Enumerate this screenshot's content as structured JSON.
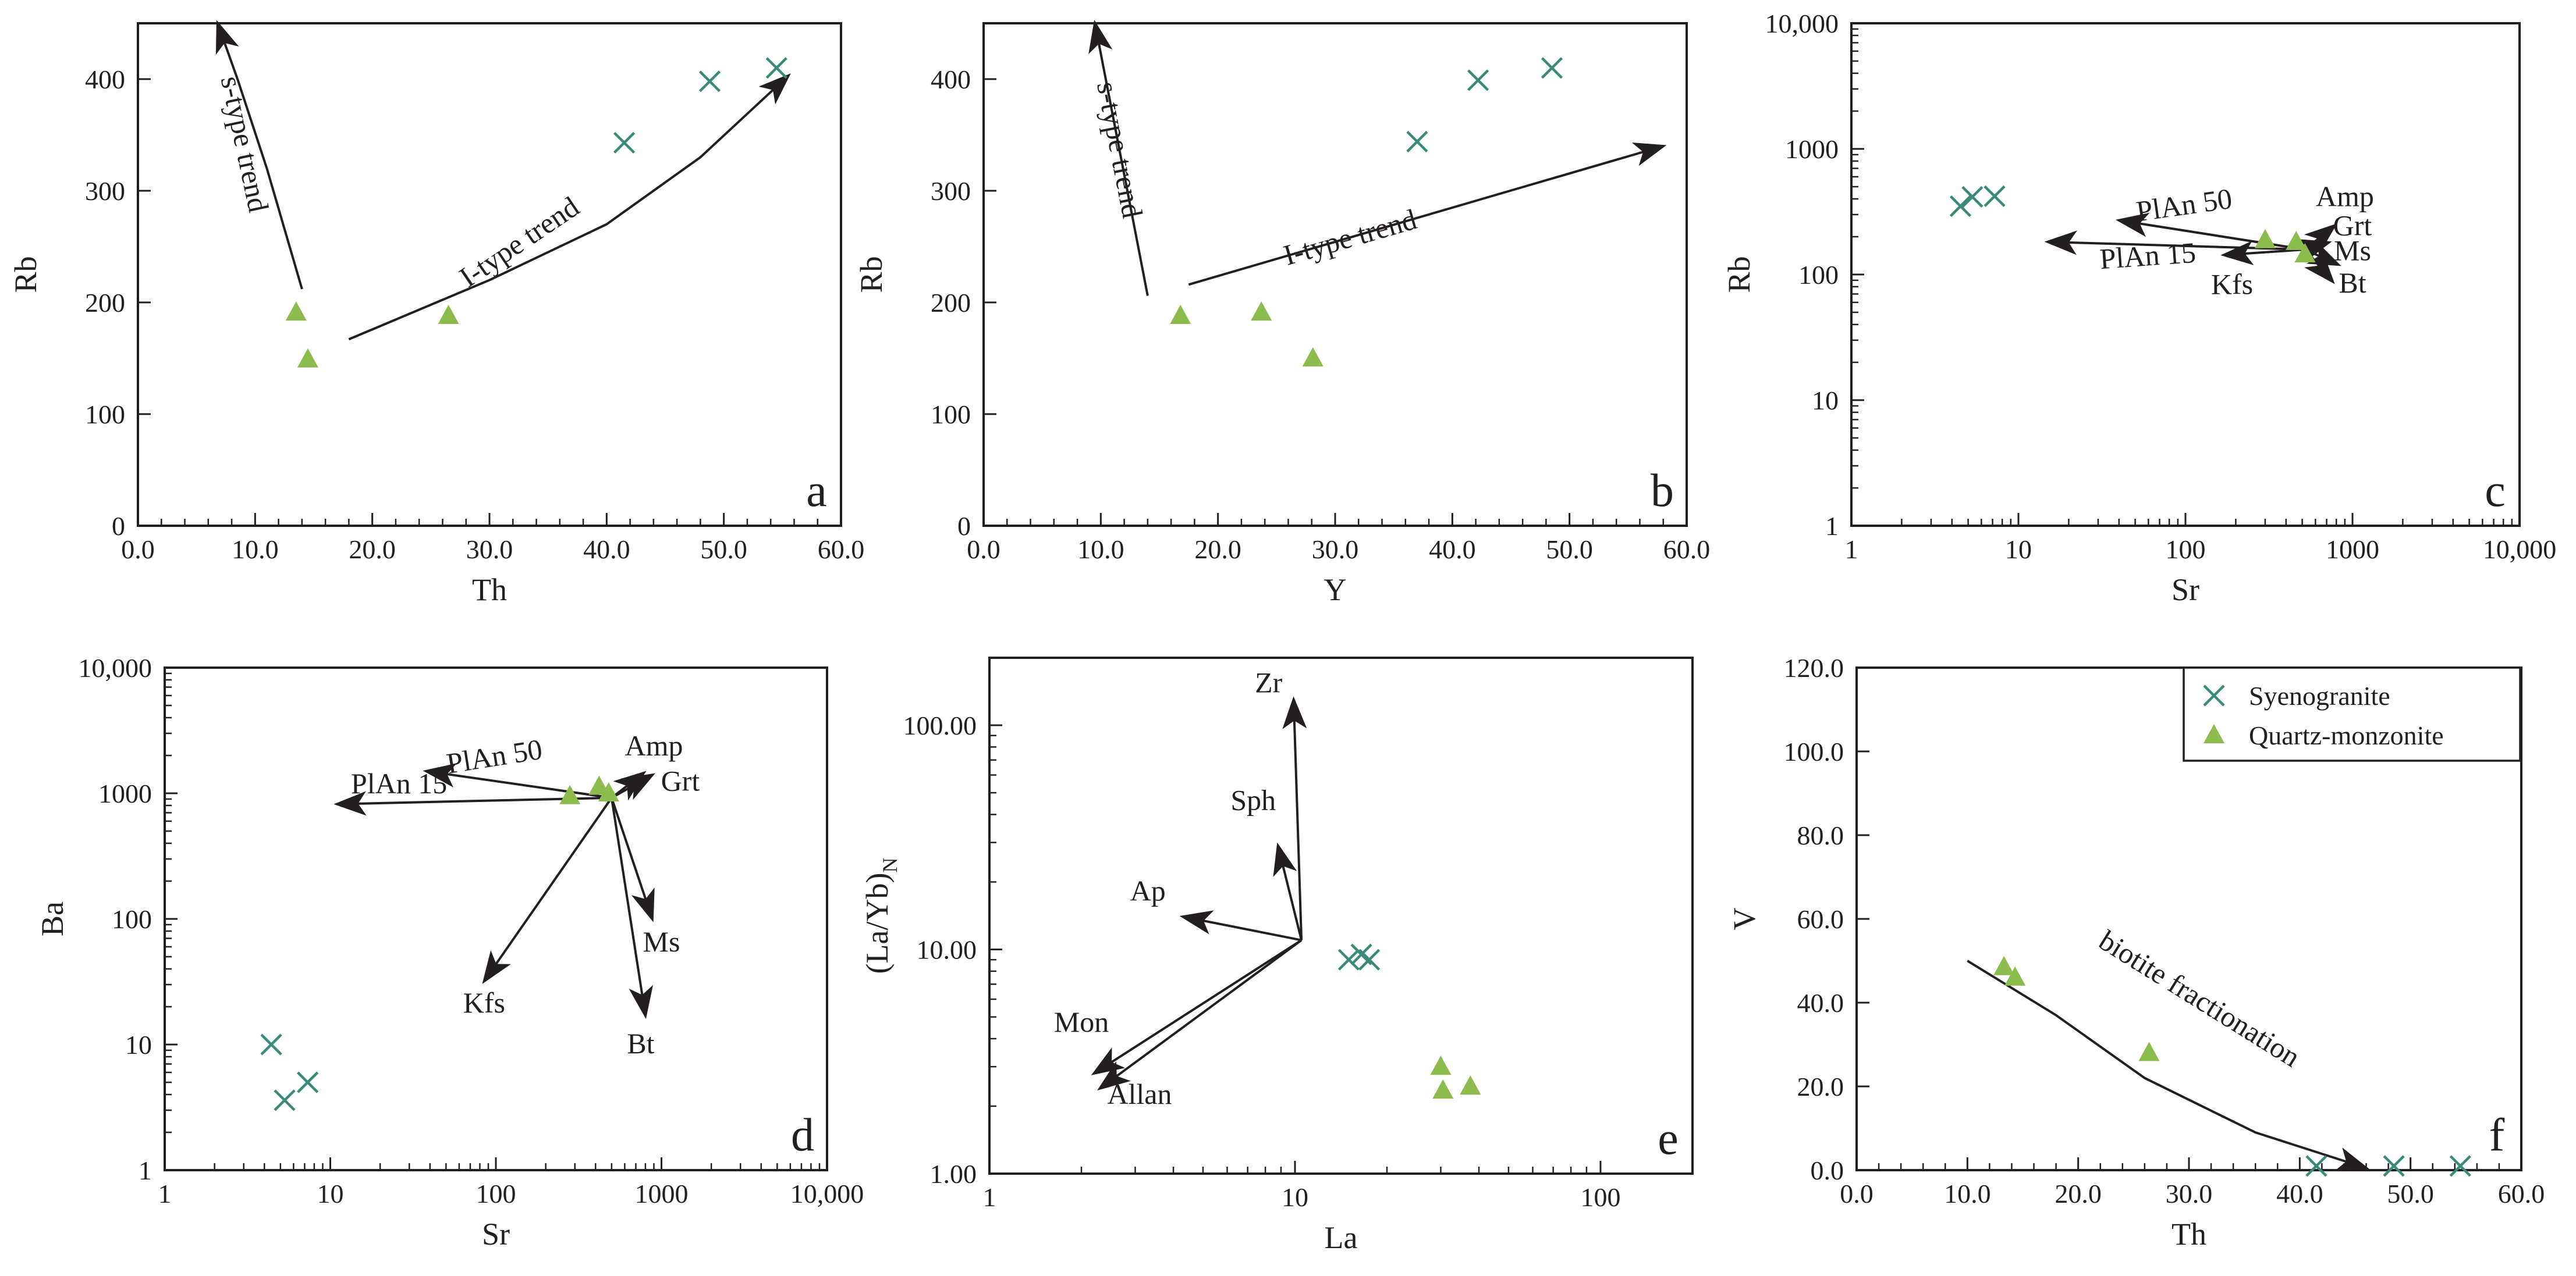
{
  "figure": {
    "marker_legend": [
      {
        "name": "Syenogranite",
        "symbol": "x",
        "color": "#3a8a7a"
      },
      {
        "name": "Quartz-monzonite",
        "symbol": "triangle",
        "color": "#8cbb4e"
      }
    ]
  },
  "chart_data": [
    {
      "type": "scatter",
      "panel_label": "a",
      "xlabel": "Th",
      "ylabel": "Rb",
      "xscale": "linear",
      "yscale": "linear",
      "xlim": [
        0,
        60
      ],
      "ylim": [
        0,
        450
      ],
      "xticks": [
        0,
        10,
        20,
        30,
        40,
        50,
        60
      ],
      "xtick_labels": [
        "0.0",
        "10.0",
        "20.0",
        "30.0",
        "40.0",
        "50.0",
        "60.0"
      ],
      "yticks": [
        0,
        100,
        200,
        300,
        400
      ],
      "ytick_labels": [
        "0",
        "100",
        "200",
        "300",
        "400"
      ],
      "series": [
        {
          "name": "Syenogranite",
          "x": [
            41.5,
            48.8,
            54.5
          ],
          "y": [
            343,
            398,
            410
          ]
        },
        {
          "name": "Quartz-monzonite",
          "x": [
            13.5,
            14.5,
            26.5
          ],
          "y": [
            191,
            149,
            188
          ]
        }
      ],
      "curves": [
        {
          "name": "s-type trend",
          "points": [
            [
              14,
              212
            ],
            [
              11,
              320
            ],
            [
              8.5,
              400
            ],
            [
              6.8,
              450
            ]
          ],
          "arrow": "end"
        },
        {
          "name": "I-type trend",
          "points": [
            [
              18,
              167
            ],
            [
              30,
              220
            ],
            [
              40,
              270
            ],
            [
              48,
              330
            ],
            [
              55.5,
              403
            ]
          ],
          "arrow": "end"
        }
      ],
      "annotations": [
        {
          "text": "s-type trend",
          "x": 8.3,
          "y": 340,
          "angle": 78
        },
        {
          "text": "I-type trend",
          "x": 33,
          "y": 247,
          "angle": -34
        }
      ]
    },
    {
      "type": "scatter",
      "panel_label": "b",
      "xlabel": "Y",
      "ylabel": "Rb",
      "xscale": "linear",
      "yscale": "linear",
      "xlim": [
        0,
        60
      ],
      "ylim": [
        0,
        450
      ],
      "xticks": [
        0,
        10,
        20,
        30,
        40,
        50,
        60
      ],
      "xtick_labels": [
        "0.0",
        "10.0",
        "20.0",
        "30.0",
        "40.0",
        "50.0",
        "60.0"
      ],
      "yticks": [
        0,
        100,
        200,
        300,
        400
      ],
      "ytick_labels": [
        "0",
        "100",
        "200",
        "300",
        "400"
      ],
      "series": [
        {
          "name": "Syenogranite",
          "x": [
            37,
            42.2,
            48.5
          ],
          "y": [
            344,
            399,
            410
          ]
        },
        {
          "name": "Quartz-monzonite",
          "x": [
            16.8,
            23.7,
            28.1
          ],
          "y": [
            188,
            191,
            150
          ]
        }
      ],
      "curves": [
        {
          "name": "s-type trend",
          "points": [
            [
              14,
              206
            ],
            [
              9.5,
              450
            ]
          ],
          "arrow": "end"
        },
        {
          "name": "I-type trend",
          "points": [
            [
              17.5,
              216
            ],
            [
              58,
              340
            ]
          ],
          "arrow": "end"
        }
      ],
      "annotations": [
        {
          "text": "s-type trend",
          "x": 10.8,
          "y": 335,
          "angle": 79
        },
        {
          "text": "I-type trend",
          "x": 31.5,
          "y": 250,
          "angle": -16
        }
      ]
    },
    {
      "type": "scatter",
      "panel_label": "c",
      "xlabel": "Sr",
      "ylabel": "Rb",
      "xscale": "log",
      "yscale": "log",
      "xlim": [
        1,
        10000
      ],
      "ylim": [
        1,
        10000
      ],
      "xticks": [
        1,
        10,
        100,
        1000,
        10000
      ],
      "xtick_labels": [
        "1",
        "10",
        "100",
        "1000",
        "10,000"
      ],
      "yticks": [
        1,
        10,
        100,
        1000,
        10000
      ],
      "ytick_labels": [
        "1",
        "10",
        "100",
        "1000",
        "10,000"
      ],
      "series": [
        {
          "name": "Syenogranite",
          "x": [
            4.5,
            5.3,
            7.2
          ],
          "y": [
            350,
            415,
            420
          ]
        },
        {
          "name": "Quartz-monzonite",
          "x": [
            300,
            460,
            520
          ],
          "y": [
            188,
            182,
            145
          ]
        }
      ],
      "vectors": {
        "origin": [
          520,
          158
        ],
        "items": [
          {
            "name": "PlAn 15",
            "to": [
              15,
              182
            ]
          },
          {
            "name": "PlAn 50",
            "to": [
              40,
              270
            ]
          },
          {
            "name": "Kfs",
            "to": [
              170,
              143
            ]
          },
          {
            "name": "Amp",
            "to": [
              780,
              245
            ]
          },
          {
            "name": "Grt",
            "to": [
              720,
              180
            ]
          },
          {
            "name": "Ms",
            "to": [
              820,
              120
            ]
          },
          {
            "name": "Bt",
            "to": [
              760,
              88
            ]
          }
        ]
      },
      "annotations": [
        {
          "text": "PlAn 50",
          "x": 100,
          "y": 300,
          "angle": -8
        },
        {
          "text": "PlAn 15",
          "x": 60,
          "y": 118,
          "angle": -4
        },
        {
          "text": "Kfs",
          "x": 190,
          "y": 70,
          "angle": 0
        },
        {
          "text": "Amp",
          "x": 900,
          "y": 350,
          "angle": 0
        },
        {
          "text": "Grt",
          "x": 1000,
          "y": 205,
          "angle": 0
        },
        {
          "text": "Ms",
          "x": 1000,
          "y": 130,
          "angle": 0
        },
        {
          "text": "Bt",
          "x": 1000,
          "y": 72,
          "angle": 0
        }
      ]
    },
    {
      "type": "scatter",
      "panel_label": "d",
      "xlabel": "Sr",
      "ylabel": "Ba",
      "xscale": "log",
      "yscale": "log",
      "xlim": [
        1,
        10000
      ],
      "ylim": [
        1,
        10000
      ],
      "xticks": [
        1,
        10,
        100,
        1000,
        10000
      ],
      "xtick_labels": [
        "1",
        "10",
        "100",
        "1000",
        "10,000"
      ],
      "yticks": [
        1,
        10,
        100,
        1000,
        10000
      ],
      "ytick_labels": [
        "1",
        "10",
        "100",
        "1000",
        "10,000"
      ],
      "series": [
        {
          "name": "Syenogranite",
          "x": [
            4.4,
            5.3,
            7.3
          ],
          "y": [
            10,
            3.6,
            5
          ]
        },
        {
          "name": "Quartz-monzonite",
          "x": [
            280,
            420,
            480
          ],
          "y": [
            950,
            1130,
            1000
          ]
        }
      ],
      "vectors": {
        "origin": [
          500,
          920
        ],
        "items": [
          {
            "name": "PlAn 15",
            "to": [
              11,
              820
            ]
          },
          {
            "name": "PlAn 50",
            "to": [
              38,
              1500
            ]
          },
          {
            "name": "Amp",
            "to": [
              780,
              1450
            ]
          },
          {
            "name": "Grt",
            "to": [
              880,
              1400
            ]
          },
          {
            "name": "Ms",
            "to": [
              880,
              100
            ]
          },
          {
            "name": "Kfs",
            "to": [
              85,
              32
            ]
          },
          {
            "name": "Bt",
            "to": [
              800,
              17
            ]
          }
        ]
      },
      "annotations": [
        {
          "text": "PlAn 50",
          "x": 100,
          "y": 1650,
          "angle": -9
        },
        {
          "text": "PlAn 15",
          "x": 26,
          "y": 1000,
          "angle": 0
        },
        {
          "text": "Amp",
          "x": 900,
          "y": 2000,
          "angle": 0
        },
        {
          "text": "Grt",
          "x": 1300,
          "y": 1050,
          "angle": 0
        },
        {
          "text": "Ms",
          "x": 1000,
          "y": 55,
          "angle": 0
        },
        {
          "text": "Kfs",
          "x": 85,
          "y": 18,
          "angle": 0
        },
        {
          "text": "Bt",
          "x": 750,
          "y": 8.5,
          "angle": 0
        }
      ]
    },
    {
      "type": "scatter",
      "panel_label": "e",
      "xlabel": "La",
      "ylabel": "(La/Yb)N",
      "ylabel_main": "(La/Yb)",
      "ylabel_sub": "N",
      "xscale": "log",
      "yscale": "log",
      "xlim": [
        1,
        200
      ],
      "ylim": [
        1,
        200
      ],
      "xticks": [
        1,
        10,
        100
      ],
      "xtick_labels": [
        "1",
        "10",
        "100"
      ],
      "yticks": [
        1,
        10,
        100
      ],
      "ytick_labels": [
        "1.00",
        "10.00",
        "100.00"
      ],
      "series": [
        {
          "name": "Syenogranite",
          "x": [
            15,
            16.5,
            17.5
          ],
          "y": [
            9,
            9.5,
            9
          ]
        },
        {
          "name": "Quartz-monzonite",
          "x": [
            30,
            30.5,
            37.5
          ],
          "y": [
            3.0,
            2.35,
            2.45
          ]
        }
      ],
      "vectors": {
        "origin": [
          10.5,
          11
        ],
        "items": [
          {
            "name": "Zr",
            "to": [
              9.9,
              130
            ]
          },
          {
            "name": "Sph",
            "to": [
              8.8,
              29
            ]
          },
          {
            "name": "Ap",
            "to": [
              4.3,
              14
            ]
          },
          {
            "name": "Mon",
            "to": [
              2.2,
              2.8
            ]
          },
          {
            "name": "Allan",
            "to": [
              2.3,
              2.4
            ]
          }
        ]
      },
      "annotations": [
        {
          "text": "Zr",
          "x": 8.2,
          "y": 140,
          "angle": 0
        },
        {
          "text": "Sph",
          "x": 7.3,
          "y": 42,
          "angle": 0
        },
        {
          "text": "Ap",
          "x": 3.3,
          "y": 16.5,
          "angle": 0
        },
        {
          "text": "Mon",
          "x": 2.0,
          "y": 4.3,
          "angle": 0
        },
        {
          "text": "Allan",
          "x": 3.1,
          "y": 2.05,
          "angle": 0
        }
      ]
    },
    {
      "type": "scatter",
      "panel_label": "f",
      "xlabel": "Th",
      "ylabel": "V",
      "xscale": "linear",
      "yscale": "linear",
      "xlim": [
        0,
        60
      ],
      "ylim": [
        0,
        120
      ],
      "xticks": [
        0,
        10,
        20,
        30,
        40,
        50,
        60
      ],
      "xtick_labels": [
        "0.0",
        "10.0",
        "20.0",
        "30.0",
        "40.0",
        "50.0",
        "60.0"
      ],
      "yticks": [
        0,
        20,
        40,
        60,
        80,
        100,
        120
      ],
      "ytick_labels": [
        "0.0",
        "20.0",
        "40.0",
        "60.0",
        "80.0",
        "100.0",
        "120.0"
      ],
      "series": [
        {
          "name": "Syenogranite",
          "x": [
            41.5,
            48.5,
            54.5
          ],
          "y": [
            1,
            1,
            1
          ]
        },
        {
          "name": "Quartz-monzonite",
          "x": [
            13.3,
            14.3,
            26.4
          ],
          "y": [
            48.5,
            46,
            28
          ]
        }
      ],
      "curves": [
        {
          "name": "biotite fractionation",
          "points": [
            [
              10,
              50
            ],
            [
              18,
              37
            ],
            [
              26,
              22
            ],
            [
              36,
              9
            ],
            [
              46,
              0.5
            ]
          ],
          "arrow": "end"
        }
      ],
      "annotations": [
        {
          "text": "biotite fractionation",
          "x": 30.5,
          "y": 39,
          "angle": 32
        }
      ],
      "legend": [
        {
          "label": "Syenogranite",
          "symbol": "x"
        },
        {
          "label": "Quartz-monzonite",
          "symbol": "triangle"
        }
      ]
    }
  ]
}
